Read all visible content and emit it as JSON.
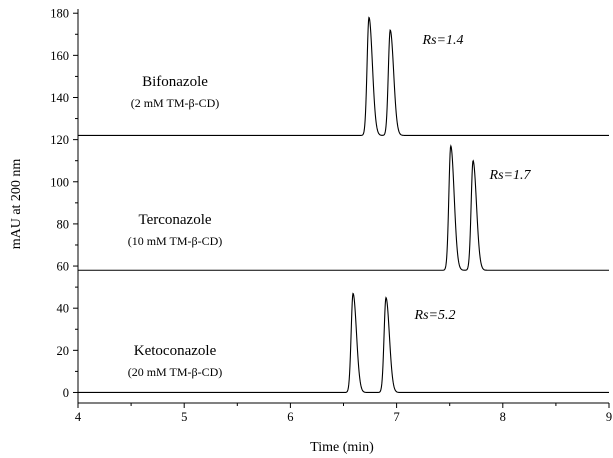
{
  "chart_data": {
    "type": "line",
    "title": "",
    "xlabel": "Time (min)",
    "ylabel": "mAU at 200 nm",
    "xlim": [
      4,
      9
    ],
    "ylim": [
      -5,
      182
    ],
    "x_ticks": [
      4,
      5,
      6,
      7,
      8,
      9
    ],
    "y_ticks": [
      0,
      20,
      40,
      60,
      80,
      100,
      120,
      140,
      160,
      180
    ],
    "grid": false,
    "legend": "none",
    "line_color": "#000000",
    "series": [
      {
        "label": "Bifonazole",
        "sublabel": "(2 mM TM-β-CD)",
        "baseline": 122,
        "rs_label": "Rs=1.4",
        "peaks": [
          {
            "time": 6.74,
            "height": 178
          },
          {
            "time": 6.94,
            "height": 172
          }
        ]
      },
      {
        "label": "Terconazole",
        "sublabel": "(10 mM TM-β-CD)",
        "baseline": 58,
        "rs_label": "Rs=1.7",
        "peaks": [
          {
            "time": 7.51,
            "height": 117
          },
          {
            "time": 7.72,
            "height": 110
          }
        ]
      },
      {
        "label": "Ketoconazole",
        "sublabel": "(20 mM TM-β-CD)",
        "baseline": 0,
        "rs_label": "Rs=5.2",
        "peaks": [
          {
            "time": 6.59,
            "height": 47
          },
          {
            "time": 6.9,
            "height": 45
          }
        ]
      }
    ]
  }
}
